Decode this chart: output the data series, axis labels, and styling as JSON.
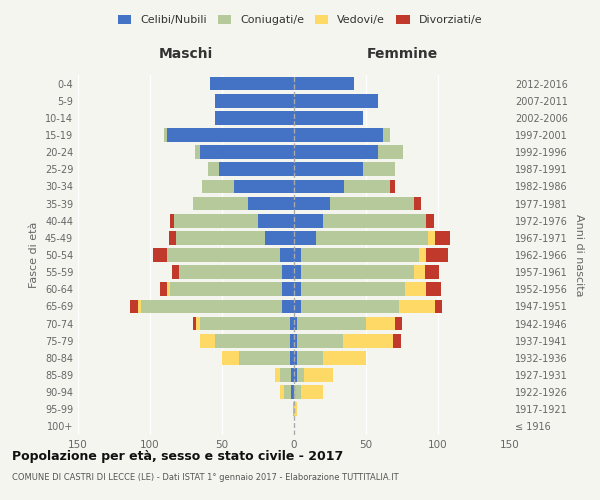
{
  "age_groups": [
    "100+",
    "95-99",
    "90-94",
    "85-89",
    "80-84",
    "75-79",
    "70-74",
    "65-69",
    "60-64",
    "55-59",
    "50-54",
    "45-49",
    "40-44",
    "35-39",
    "30-34",
    "25-29",
    "20-24",
    "15-19",
    "10-14",
    "5-9",
    "0-4"
  ],
  "birth_years": [
    "≤ 1916",
    "1917-1921",
    "1922-1926",
    "1927-1931",
    "1932-1936",
    "1937-1941",
    "1942-1946",
    "1947-1951",
    "1952-1956",
    "1957-1961",
    "1962-1966",
    "1967-1971",
    "1972-1976",
    "1977-1981",
    "1982-1986",
    "1987-1991",
    "1992-1996",
    "1997-2001",
    "2002-2006",
    "2007-2011",
    "2012-2016"
  ],
  "male": {
    "celibi": [
      0,
      0,
      2,
      2,
      3,
      3,
      3,
      8,
      8,
      8,
      10,
      20,
      25,
      32,
      42,
      52,
      65,
      88,
      55,
      55,
      58
    ],
    "coniugati": [
      0,
      1,
      5,
      8,
      35,
      52,
      62,
      98,
      78,
      72,
      78,
      62,
      58,
      38,
      22,
      8,
      4,
      2,
      0,
      0,
      0
    ],
    "vedovi": [
      0,
      0,
      3,
      3,
      12,
      10,
      3,
      2,
      2,
      0,
      0,
      0,
      0,
      0,
      0,
      0,
      0,
      0,
      0,
      0,
      0
    ],
    "divorziati": [
      0,
      0,
      0,
      0,
      0,
      0,
      2,
      6,
      5,
      5,
      10,
      5,
      3,
      0,
      0,
      0,
      0,
      0,
      0,
      0,
      0
    ]
  },
  "female": {
    "nubili": [
      0,
      0,
      0,
      2,
      2,
      2,
      2,
      5,
      5,
      5,
      5,
      15,
      20,
      25,
      35,
      48,
      58,
      62,
      48,
      58,
      42
    ],
    "coniugate": [
      0,
      0,
      5,
      5,
      18,
      32,
      48,
      68,
      72,
      78,
      82,
      78,
      72,
      58,
      32,
      22,
      18,
      5,
      0,
      0,
      0
    ],
    "vedove": [
      0,
      2,
      15,
      20,
      30,
      35,
      20,
      25,
      15,
      8,
      5,
      5,
      0,
      0,
      0,
      0,
      0,
      0,
      0,
      0,
      0
    ],
    "divorziate": [
      0,
      0,
      0,
      0,
      0,
      5,
      5,
      5,
      10,
      10,
      15,
      10,
      5,
      5,
      3,
      0,
      0,
      0,
      0,
      0,
      0
    ]
  },
  "colors": {
    "celibi": "#4472c4",
    "coniugati": "#b5c99a",
    "vedovi": "#ffd966",
    "divorziati": "#c0392b"
  },
  "xlim": 150,
  "title": "Popolazione per età, sesso e stato civile - 2017",
  "subtitle": "COMUNE DI CASTRI DI LECCE (LE) - Dati ISTAT 1° gennaio 2017 - Elaborazione TUTTITALIA.IT",
  "ylabel_left": "Fasce di età",
  "ylabel_right": "Anni di nascita",
  "col_maschi": "Maschi",
  "col_femmine": "Femmine",
  "legend_labels": [
    "Celibi/Nubili",
    "Coniugati/e",
    "Vedovi/e",
    "Divorziati/e"
  ],
  "bg_color": "#f5f5f0",
  "bar_height": 0.8
}
